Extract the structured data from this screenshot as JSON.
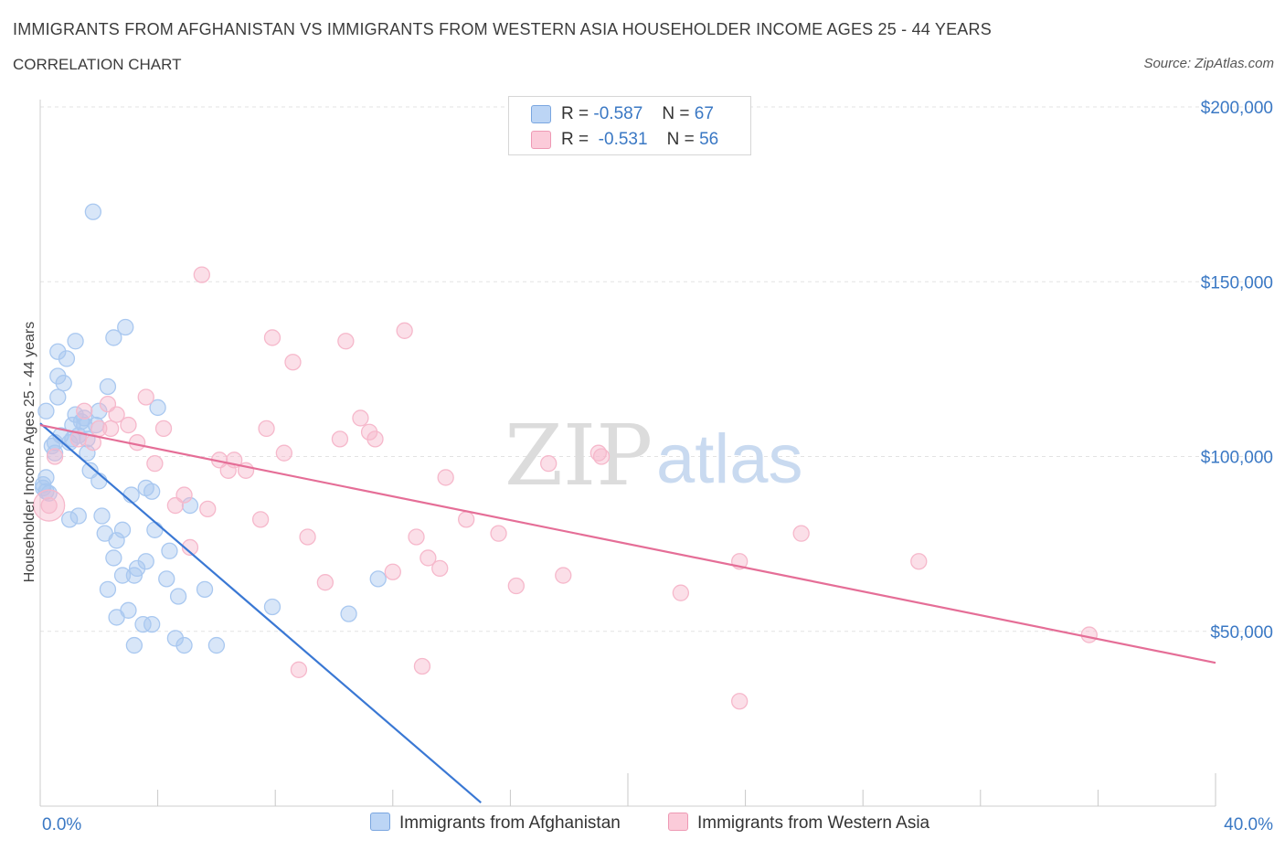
{
  "header": {
    "title": "IMMIGRANTS FROM AFGHANISTAN VS IMMIGRANTS FROM WESTERN ASIA HOUSEHOLDER INCOME AGES 25 - 44 YEARS",
    "subtitle": "CORRELATION CHART",
    "source": "Source: ZipAtlas.com"
  },
  "watermark": {
    "zip": "ZIP",
    "atlas": "atlas"
  },
  "legend": {
    "rows": [
      {
        "r_label": "R =",
        "r_value": "-0.587",
        "n_label": "N =",
        "n_value": "67",
        "color": "#a9c8f0"
      },
      {
        "r_label": "R =",
        "r_value": "-0.531",
        "n_label": "N =",
        "n_value": "56",
        "color": "#f6b8cb"
      }
    ]
  },
  "chart_data": {
    "type": "scatter",
    "title": "IMMIGRANTS FROM AFGHANISTAN VS IMMIGRANTS FROM WESTERN ASIA HOUSEHOLDER INCOME AGES 25 - 44 YEARS",
    "xlabel": "",
    "ylabel": "Householder Income Ages 25 - 44 years",
    "xlim": [
      0,
      40
    ],
    "ylim": [
      0,
      200000
    ],
    "x_tick_labels": [
      "0.0%",
      "40.0%"
    ],
    "y_tick_labels": [
      "$50,000",
      "$100,000",
      "$150,000",
      "$200,000"
    ],
    "y_ticks": [
      50000,
      100000,
      150000,
      200000
    ],
    "grid": true,
    "legend_position": "bottom",
    "series": [
      {
        "name": "Immigrants from Afghanistan",
        "color": "#3a78d4",
        "fill": "#a9c8f0",
        "trend": {
          "x": [
            0.0,
            15.0
          ],
          "y": [
            109500,
            1000
          ]
        },
        "points": [
          [
            0.2,
            113000
          ],
          [
            0.2,
            94000
          ],
          [
            0.1,
            91000
          ],
          [
            0.2,
            90000
          ],
          [
            0.3,
            89500
          ],
          [
            0.1,
            92000
          ],
          [
            0.4,
            103000
          ],
          [
            0.5,
            104000
          ],
          [
            0.5,
            101000
          ],
          [
            0.6,
            117000
          ],
          [
            0.6,
            123000
          ],
          [
            0.6,
            130000
          ],
          [
            0.7,
            106000
          ],
          [
            0.8,
            121000
          ],
          [
            0.9,
            128000
          ],
          [
            1.0,
            104000
          ],
          [
            1.1,
            109000
          ],
          [
            1.2,
            112000
          ],
          [
            1.2,
            133000
          ],
          [
            1.3,
            106000
          ],
          [
            1.4,
            110000
          ],
          [
            1.5,
            109000
          ],
          [
            1.5,
            111000
          ],
          [
            1.6,
            105000
          ],
          [
            1.6,
            101000
          ],
          [
            1.7,
            96000
          ],
          [
            1.8,
            170000
          ],
          [
            1.9,
            109000
          ],
          [
            2.0,
            113000
          ],
          [
            2.0,
            93000
          ],
          [
            1.0,
            82000
          ],
          [
            1.3,
            83000
          ],
          [
            2.1,
            83000
          ],
          [
            2.2,
            78000
          ],
          [
            2.3,
            62000
          ],
          [
            2.3,
            120000
          ],
          [
            2.5,
            134000
          ],
          [
            2.5,
            71000
          ],
          [
            2.6,
            76000
          ],
          [
            2.6,
            54000
          ],
          [
            2.8,
            79000
          ],
          [
            2.8,
            66000
          ],
          [
            2.9,
            137000
          ],
          [
            3.0,
            56000
          ],
          [
            3.1,
            89000
          ],
          [
            3.2,
            66000
          ],
          [
            3.2,
            46000
          ],
          [
            3.3,
            68000
          ],
          [
            3.5,
            52000
          ],
          [
            3.6,
            91000
          ],
          [
            3.6,
            70000
          ],
          [
            3.8,
            52000
          ],
          [
            3.8,
            90000
          ],
          [
            3.9,
            79000
          ],
          [
            4.0,
            114000
          ],
          [
            4.3,
            65000
          ],
          [
            4.4,
            73000
          ],
          [
            4.6,
            48000
          ],
          [
            4.7,
            60000
          ],
          [
            4.9,
            46000
          ],
          [
            5.1,
            86000
          ],
          [
            5.6,
            62000
          ],
          [
            6.0,
            46000
          ],
          [
            7.9,
            57000
          ],
          [
            10.5,
            55000
          ],
          [
            11.5,
            65000
          ],
          [
            1.1,
            105000
          ]
        ]
      },
      {
        "name": "Immigrants from Western Asia",
        "color": "#e56e97",
        "fill": "#f6b8cb",
        "trend": {
          "x": [
            0.0,
            40.0
          ],
          "y": [
            109000,
            41000
          ]
        },
        "points": [
          [
            0.3,
            86000
          ],
          [
            0.5,
            100000
          ],
          [
            1.3,
            105000
          ],
          [
            1.5,
            113000
          ],
          [
            1.8,
            104000
          ],
          [
            2.0,
            108000
          ],
          [
            2.3,
            115000
          ],
          [
            2.4,
            108000
          ],
          [
            2.6,
            112000
          ],
          [
            3.0,
            109000
          ],
          [
            3.3,
            104000
          ],
          [
            3.6,
            117000
          ],
          [
            3.9,
            98000
          ],
          [
            4.2,
            108000
          ],
          [
            4.6,
            86000
          ],
          [
            4.9,
            89000
          ],
          [
            5.1,
            74000
          ],
          [
            5.5,
            152000
          ],
          [
            5.7,
            85000
          ],
          [
            6.1,
            99000
          ],
          [
            6.4,
            96000
          ],
          [
            6.6,
            99000
          ],
          [
            7.0,
            96000
          ],
          [
            7.5,
            82000
          ],
          [
            7.7,
            108000
          ],
          [
            7.9,
            134000
          ],
          [
            8.3,
            101000
          ],
          [
            8.6,
            127000
          ],
          [
            8.8,
            39000
          ],
          [
            9.1,
            77000
          ],
          [
            9.7,
            64000
          ],
          [
            10.2,
            105000
          ],
          [
            10.4,
            133000
          ],
          [
            10.9,
            111000
          ],
          [
            11.2,
            107000
          ],
          [
            11.4,
            105000
          ],
          [
            12.0,
            67000
          ],
          [
            12.4,
            136000
          ],
          [
            12.8,
            77000
          ],
          [
            13.0,
            40000
          ],
          [
            13.2,
            71000
          ],
          [
            13.6,
            68000
          ],
          [
            13.8,
            94000
          ],
          [
            14.5,
            82000
          ],
          [
            15.6,
            78000
          ],
          [
            16.2,
            63000
          ],
          [
            17.3,
            98000
          ],
          [
            17.8,
            66000
          ],
          [
            19.0,
            101000
          ],
          [
            19.1,
            100000
          ],
          [
            21.8,
            61000
          ],
          [
            23.8,
            30000
          ],
          [
            23.8,
            70000
          ],
          [
            25.9,
            78000
          ],
          [
            29.9,
            70000
          ],
          [
            35.7,
            49000
          ]
        ]
      }
    ]
  }
}
